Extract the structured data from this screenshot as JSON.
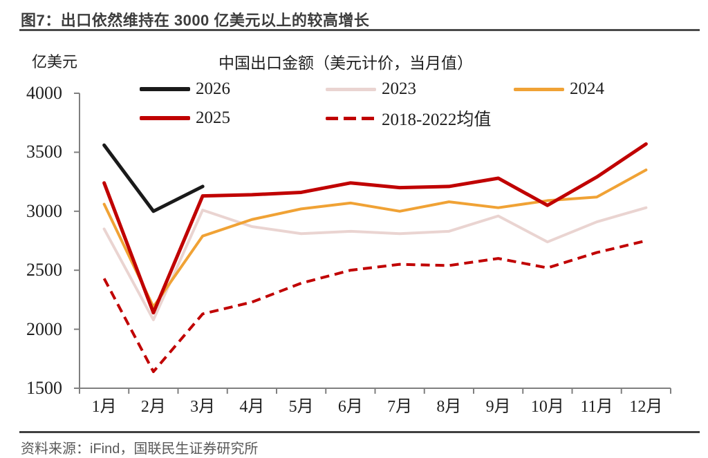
{
  "header": {
    "title": "图7：出口依然维持在 3000 亿美元以上的较高增长"
  },
  "footer": {
    "source": "资料来源：iFind，国联民生证券研究所"
  },
  "chart_data": {
    "type": "line",
    "title": "中国出口金额（美元计价，当月值）",
    "unit_label": "亿美元",
    "categories": [
      "1月",
      "2月",
      "3月",
      "4月",
      "5月",
      "6月",
      "7月",
      "8月",
      "9月",
      "10月",
      "11月",
      "12月"
    ],
    "yticks": [
      4000,
      3500,
      3000,
      2500,
      2000,
      1500
    ],
    "ylim": [
      1500,
      4000
    ],
    "grid": false,
    "legend_position": "top",
    "axis_color": "#7f7f7f",
    "series": [
      {
        "name": "2023",
        "color": "#ead4d1",
        "width": 4,
        "dash": null,
        "values": [
          2850,
          2080,
          3010,
          2870,
          2810,
          2830,
          2810,
          2830,
          2960,
          2740,
          2910,
          3030
        ]
      },
      {
        "name": "2024",
        "color": "#f0a235",
        "width": 4,
        "dash": null,
        "values": [
          3060,
          2190,
          2790,
          2930,
          3020,
          3070,
          3000,
          3080,
          3030,
          3090,
          3120,
          3350
        ]
      },
      {
        "name": "2018-2022均值",
        "color": "#c00000",
        "width": 4,
        "dash": "13 8",
        "values": [
          2430,
          1640,
          2130,
          2230,
          2390,
          2500,
          2550,
          2540,
          2600,
          2520,
          2650,
          2750
        ]
      },
      {
        "name": "2025",
        "color": "#c00000",
        "width": 5,
        "dash": null,
        "values": [
          3240,
          2140,
          3130,
          3140,
          3160,
          3240,
          3200,
          3210,
          3280,
          3050,
          3290,
          3570
        ]
      },
      {
        "name": "2026",
        "color": "#1a1a1a",
        "width": 5,
        "dash": null,
        "values": [
          3560,
          3000,
          3210
        ]
      }
    ]
  }
}
